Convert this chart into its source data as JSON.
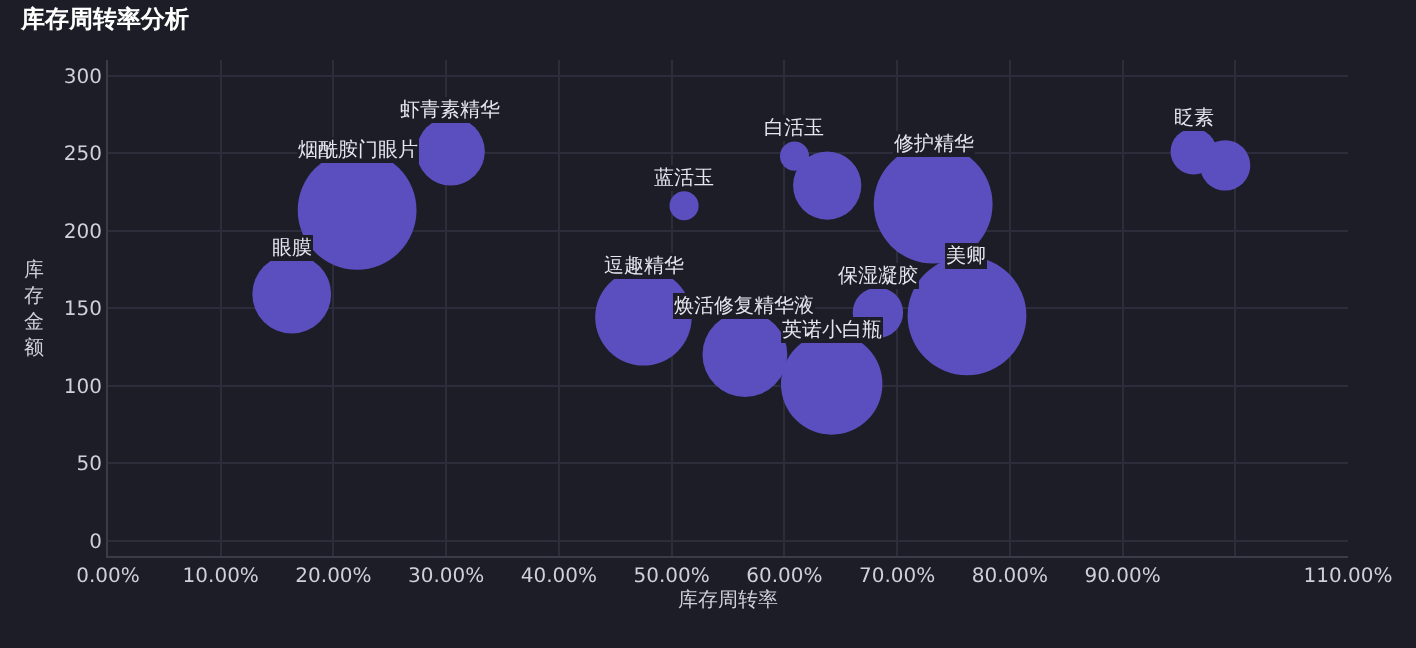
{
  "chart_data": {
    "type": "bubble",
    "title": "库存周转率分析",
    "xlabel": "库存周转率",
    "ylabel": "库存金额",
    "x": [
      0.163,
      0.221,
      0.304,
      0.475,
      0.511,
      0.565,
      0.609,
      0.638,
      0.642,
      0.683,
      0.732,
      0.762,
      0.963,
      0.991
    ],
    "values": [
      159,
      213,
      251,
      144,
      216,
      120,
      248,
      229,
      101,
      147,
      217,
      145,
      251,
      242
    ],
    "sizes": [
      0.44,
      1,
      0.33,
      0.66,
      0.06,
      0.51,
      0.06,
      0.33,
      0.73,
      0.18,
      1,
      1,
      0.15,
      0.18
    ],
    "color": "#5b4fbf",
    "annotations": [
      {
        "text": "眼膜",
        "x": 0.163,
        "y": 159
      },
      {
        "text": "烟酰胺门眼片",
        "x": 0.221,
        "y": 213
      },
      {
        "text": "虾青素精华",
        "x": 0.304,
        "y": 251
      },
      {
        "text": "逗趣精华",
        "x": 0.475,
        "y": 144
      },
      {
        "text": "蓝活玉",
        "x": 0.511,
        "y": 216
      },
      {
        "text": "焕活修复精华液",
        "x": 0.565,
        "y": 120
      },
      {
        "text": "白活玉",
        "x": 0.609,
        "y": 248
      },
      {
        "text": "英诺小白瓶",
        "x": 0.642,
        "y": 101
      },
      {
        "text": "保湿凝胶",
        "x": 0.683,
        "y": 147
      },
      {
        "text": "修护精华",
        "x": 0.732,
        "y": 217
      },
      {
        "text": "美卿",
        "x": 0.762,
        "y": 145
      },
      {
        "text": "眨素",
        "x": 0.963,
        "y": 251
      }
    ],
    "xlim": [
      0,
      1.1
    ],
    "xticks": [
      {
        "value": 0,
        "label": "0.00%"
      },
      {
        "value": 0.1,
        "label": "10.00%"
      },
      {
        "value": 0.2,
        "label": "20.00%"
      },
      {
        "value": 0.3,
        "label": "30.00%"
      },
      {
        "value": 0.4,
        "label": "40.00%"
      },
      {
        "value": 0.5,
        "label": "50.00%"
      },
      {
        "value": 0.6,
        "label": "60.00%"
      },
      {
        "value": 0.7,
        "label": "70.00%"
      },
      {
        "value": 0.8,
        "label": "80.00%"
      },
      {
        "value": 0.9,
        "label": "90.00%"
      },
      {
        "value": 1.0,
        "label": null
      },
      {
        "value": 1.1,
        "label": "110.00%"
      }
    ],
    "ylim": [
      -10,
      310
    ],
    "yticks": [
      0,
      50,
      100,
      150,
      200,
      250,
      300
    ],
    "grid": true
  }
}
